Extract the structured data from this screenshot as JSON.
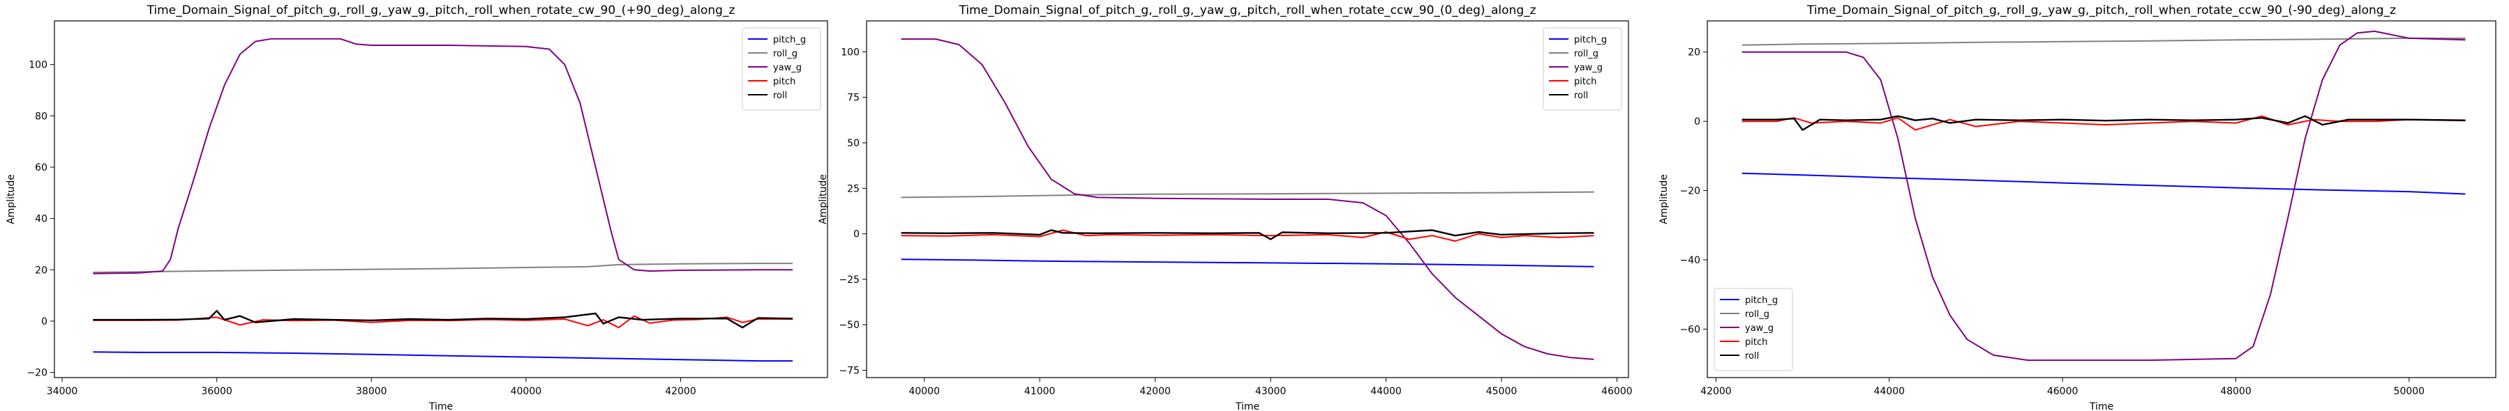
{
  "chart_data": [
    {
      "type": "line",
      "title": "Time_Domain_Signal_of_pitch_g,_roll_g,_yaw_g,_pitch,_roll_when_rotate_cw_90_(+90_deg)_along_z",
      "xlabel": "Time",
      "ylabel": "Amplitude",
      "xlim": [
        33900,
        43900
      ],
      "ylim": [
        -22,
        117
      ],
      "xticks": [
        34000,
        36000,
        38000,
        40000,
        42000
      ],
      "yticks": [
        -20,
        0,
        20,
        40,
        60,
        80,
        100
      ],
      "legend": "top-right",
      "grid": false,
      "series": [
        {
          "name": "pitch_g",
          "color": "#0000ff",
          "x": [
            34400,
            35000,
            36000,
            37000,
            38000,
            39000,
            40000,
            41000,
            42000,
            43000,
            43450
          ],
          "y": [
            -12,
            -12.2,
            -12.2,
            -12.5,
            -13,
            -13.5,
            -14,
            -14.5,
            -15,
            -15.5,
            -15.5
          ]
        },
        {
          "name": "roll_g",
          "color": "#808080",
          "x": [
            34400,
            35000,
            36000,
            37000,
            38000,
            39000,
            40000,
            40800,
            41200,
            42000,
            43000,
            43450
          ],
          "y": [
            19,
            19.2,
            19.6,
            19.9,
            20.2,
            20.5,
            20.9,
            21.2,
            22,
            22.3,
            22.5,
            22.5
          ]
        },
        {
          "name": "yaw_g",
          "color": "#800080",
          "x": [
            34400,
            35000,
            35300,
            35400,
            35500,
            35700,
            35900,
            36100,
            36300,
            36500,
            36700,
            37000,
            37600,
            37800,
            38000,
            39000,
            40000,
            40300,
            40500,
            40700,
            40900,
            41100,
            41200,
            41400,
            41600,
            42000,
            43000,
            43450
          ],
          "y": [
            18.5,
            18.8,
            19.5,
            24,
            36,
            55,
            75,
            92,
            104,
            109,
            110,
            110,
            110,
            108,
            107.5,
            107.5,
            107,
            106,
            100,
            85,
            60,
            35,
            24,
            20,
            19.5,
            19.8,
            20,
            20
          ]
        },
        {
          "name": "pitch",
          "color": "#ff0000",
          "x": [
            34400,
            35000,
            35500,
            36000,
            36300,
            36600,
            37000,
            37500,
            38000,
            38500,
            39000,
            39500,
            40000,
            40500,
            40800,
            41000,
            41200,
            41400,
            41600,
            41900,
            42200,
            42600,
            42800,
            43000,
            43450
          ],
          "y": [
            0.3,
            0.3,
            0.4,
            1.5,
            -1.5,
            0.5,
            0.2,
            0.4,
            -0.5,
            0.3,
            0.2,
            0.6,
            0.3,
            0.8,
            -1.8,
            0.5,
            -2.5,
            2,
            -0.8,
            0.4,
            0.6,
            1.5,
            -0.5,
            0.8,
            0.8
          ]
        },
        {
          "name": "roll",
          "color": "#000000",
          "x": [
            34400,
            35000,
            35500,
            35900,
            36000,
            36100,
            36300,
            36500,
            37000,
            37500,
            38000,
            38500,
            39000,
            39500,
            40000,
            40500,
            40900,
            41000,
            41200,
            41500,
            42000,
            42600,
            42800,
            43000,
            43450
          ],
          "y": [
            0.5,
            0.5,
            0.6,
            1,
            4,
            0.5,
            2,
            -0.5,
            0.8,
            0.5,
            0.3,
            0.8,
            0.5,
            1,
            0.8,
            1.5,
            3,
            -1,
            1.5,
            0.5,
            1,
            1,
            -2.5,
            1.2,
            1
          ]
        }
      ]
    },
    {
      "type": "line",
      "title": "Time_Domain_Signal_of_pitch_g,_roll_g,_yaw_g,_pitch,_roll_when_rotate_ccw_90_(0_deg)_along_z",
      "xlabel": "Time",
      "ylabel": "Amplitude",
      "xlim": [
        39500,
        46100
      ],
      "ylim": [
        -79,
        117
      ],
      "xticks": [
        40000,
        41000,
        42000,
        43000,
        44000,
        45000,
        46000
      ],
      "yticks": [
        -75,
        -50,
        -25,
        0,
        25,
        50,
        75,
        100
      ],
      "legend": "top-right",
      "grid": false,
      "series": [
        {
          "name": "pitch_g",
          "color": "#0000ff",
          "x": [
            39800,
            40500,
            41000,
            42000,
            43000,
            44000,
            45000,
            45800
          ],
          "y": [
            -14,
            -14.5,
            -15,
            -15.5,
            -16,
            -16.5,
            -17.3,
            -18
          ]
        },
        {
          "name": "roll_g",
          "color": "#808080",
          "x": [
            39800,
            40500,
            41000,
            41500,
            42000,
            43000,
            44000,
            45000,
            45800
          ],
          "y": [
            20,
            20.5,
            21,
            21.5,
            21.8,
            22,
            22.3,
            22.6,
            23
          ]
        },
        {
          "name": "yaw_g",
          "color": "#800080",
          "x": [
            39800,
            40100,
            40300,
            40500,
            40700,
            40900,
            41100,
            41300,
            41500,
            42000,
            43000,
            43500,
            43800,
            44000,
            44200,
            44400,
            44600,
            44800,
            45000,
            45200,
            45400,
            45600,
            45800
          ],
          "y": [
            107,
            107,
            104,
            93,
            72,
            48,
            30,
            22,
            20,
            19.5,
            19,
            19,
            17,
            10,
            -5,
            -22,
            -35,
            -45,
            -55,
            -62,
            -66,
            -68,
            -69
          ]
        },
        {
          "name": "pitch",
          "color": "#ff0000",
          "x": [
            39800,
            40200,
            40600,
            41000,
            41200,
            41400,
            41600,
            42000,
            42500,
            43000,
            43500,
            43800,
            44000,
            44200,
            44400,
            44600,
            44800,
            45000,
            45200,
            45500,
            45800
          ],
          "y": [
            -1,
            -1.2,
            -0.5,
            -1.5,
            2,
            -1,
            -0.5,
            -0.8,
            -0.5,
            -1,
            -0.5,
            -2,
            1,
            -3,
            -1,
            -4,
            0,
            -2,
            -1,
            -2,
            -1
          ]
        },
        {
          "name": "roll",
          "color": "#000000",
          "x": [
            39800,
            40200,
            40600,
            41000,
            41100,
            41200,
            41500,
            42000,
            42500,
            42900,
            43000,
            43100,
            43500,
            44000,
            44400,
            44600,
            44800,
            45000,
            45500,
            45800
          ],
          "y": [
            0.5,
            0.3,
            0.5,
            -0.5,
            2,
            0.5,
            0.3,
            0.5,
            0.3,
            0.5,
            -3,
            0.8,
            0.3,
            0.5,
            2,
            -1,
            1,
            -0.5,
            0.3,
            0.5
          ]
        }
      ]
    },
    {
      "type": "line",
      "title": "Time_Domain_Signal_of_pitch_g,_roll_g,_yaw_g,_pitch,_roll_when_rotate_ccw_90_(-90_deg)_along_z",
      "xlabel": "Time",
      "ylabel": "Amplitude",
      "xlim": [
        41900,
        51000
      ],
      "ylim": [
        -74,
        29
      ],
      "xticks": [
        42000,
        44000,
        46000,
        48000,
        50000
      ],
      "yticks": [
        -60,
        -40,
        -20,
        0,
        20
      ],
      "legend": "bottom-left",
      "grid": false,
      "series": [
        {
          "name": "pitch_g",
          "color": "#0000ff",
          "x": [
            42300,
            43000,
            44000,
            45000,
            46000,
            47000,
            48000,
            49000,
            50000,
            50650
          ],
          "y": [
            -15,
            -15.5,
            -16.3,
            -17,
            -17.8,
            -18.5,
            -19.2,
            -19.8,
            -20.3,
            -21
          ]
        },
        {
          "name": "roll_g",
          "color": "#808080",
          "x": [
            42300,
            43000,
            44000,
            45000,
            46000,
            47000,
            48000,
            49000,
            50000,
            50650
          ],
          "y": [
            22,
            22.3,
            22.5,
            22.8,
            23,
            23.2,
            23.5,
            23.7,
            24,
            24
          ]
        },
        {
          "name": "yaw_g",
          "color": "#800080",
          "x": [
            42300,
            43000,
            43500,
            43700,
            43900,
            44100,
            44300,
            44500,
            44700,
            44900,
            45200,
            45600,
            46000,
            47000,
            48000,
            48200,
            48400,
            48600,
            48800,
            49000,
            49200,
            49400,
            49600,
            49800,
            50000,
            50650
          ],
          "y": [
            20,
            20,
            20,
            18.5,
            12,
            -5,
            -28,
            -45,
            -56,
            -63,
            -67.5,
            -69,
            -69,
            -69,
            -68.5,
            -65,
            -50,
            -28,
            -5,
            12,
            22,
            25.5,
            26,
            25,
            24,
            23.5
          ]
        },
        {
          "name": "pitch",
          "color": "#ff0000",
          "x": [
            42300,
            42700,
            42900,
            43100,
            43500,
            43900,
            44100,
            44300,
            44500,
            44700,
            45000,
            45500,
            46000,
            46500,
            47000,
            47500,
            48000,
            48300,
            48600,
            48900,
            49200,
            49600,
            50000,
            50650
          ],
          "y": [
            0,
            0,
            1,
            -0.5,
            0,
            -0.5,
            1,
            -2.5,
            -1,
            0.5,
            -1.5,
            0,
            -0.5,
            -1,
            -0.5,
            0,
            -0.5,
            1.5,
            -1,
            0.5,
            0,
            0,
            0.5,
            0.2
          ]
        },
        {
          "name": "roll",
          "color": "#000000",
          "x": [
            42300,
            42700,
            42900,
            43000,
            43200,
            43500,
            43900,
            44100,
            44300,
            44500,
            44700,
            45000,
            45500,
            46000,
            46500,
            47000,
            47500,
            48000,
            48300,
            48600,
            48800,
            49000,
            49300,
            49600,
            50000,
            50650
          ],
          "y": [
            0.5,
            0.5,
            0.8,
            -2.5,
            0.5,
            0.3,
            0.5,
            1.5,
            0.3,
            0.8,
            -0.5,
            0.5,
            0.3,
            0.5,
            0.2,
            0.5,
            0.3,
            0.5,
            1,
            -0.5,
            1.5,
            -1,
            0.5,
            0.5,
            0.5,
            0.3
          ]
        }
      ]
    }
  ]
}
